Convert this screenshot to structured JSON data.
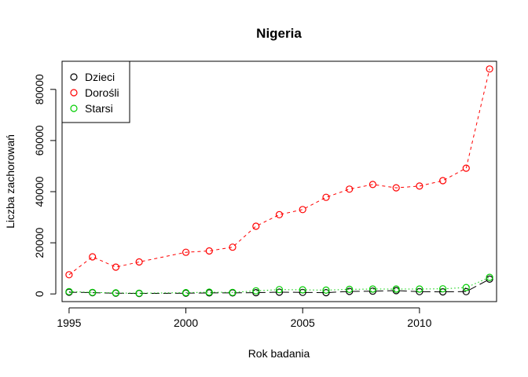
{
  "chart_data": {
    "type": "line",
    "title": "Nigeria",
    "xlabel": "Rok badania",
    "ylabel": "Liczba zachorowań",
    "xlim": [
      1994.7,
      2013.3
    ],
    "ylim": [
      -3000,
      91000
    ],
    "x_ticks": [
      1995,
      2000,
      2005,
      2010
    ],
    "y_ticks": [
      0,
      20000,
      40000,
      60000,
      80000
    ],
    "x_tick_labels": [
      "1995",
      "2000",
      "2005",
      "2010"
    ],
    "y_tick_labels": [
      "0",
      "20000",
      "40000",
      "60000",
      "80000"
    ],
    "grid": false,
    "legend_position": "top-left",
    "x": [
      1995,
      1996,
      1997,
      1998,
      2000,
      2001,
      2002,
      2003,
      2004,
      2005,
      2006,
      2007,
      2008,
      2009,
      2010,
      2011,
      2012,
      2013
    ],
    "series": [
      {
        "name": "Dzieci",
        "color": "#000000",
        "line_style": "long-dash",
        "values": [
          700,
          500,
          300,
          200,
          300,
          400,
          400,
          500,
          700,
          600,
          500,
          1000,
          1100,
          1300,
          900,
          800,
          900,
          5800
        ]
      },
      {
        "name": "Dorośli",
        "color": "#ff0000",
        "line_style": "dashed",
        "values": [
          7500,
          14500,
          10500,
          12500,
          16300,
          16800,
          18300,
          26500,
          31000,
          33000,
          37800,
          41000,
          42800,
          41500,
          42200,
          44300,
          49200,
          88000
        ]
      },
      {
        "name": "Starsi",
        "color": "#00cd00",
        "line_style": "dotted",
        "values": [
          900,
          600,
          400,
          300,
          500,
          700,
          600,
          1200,
          1700,
          1600,
          1500,
          1800,
          1900,
          1900,
          1900,
          2000,
          2500,
          6500
        ]
      }
    ]
  }
}
